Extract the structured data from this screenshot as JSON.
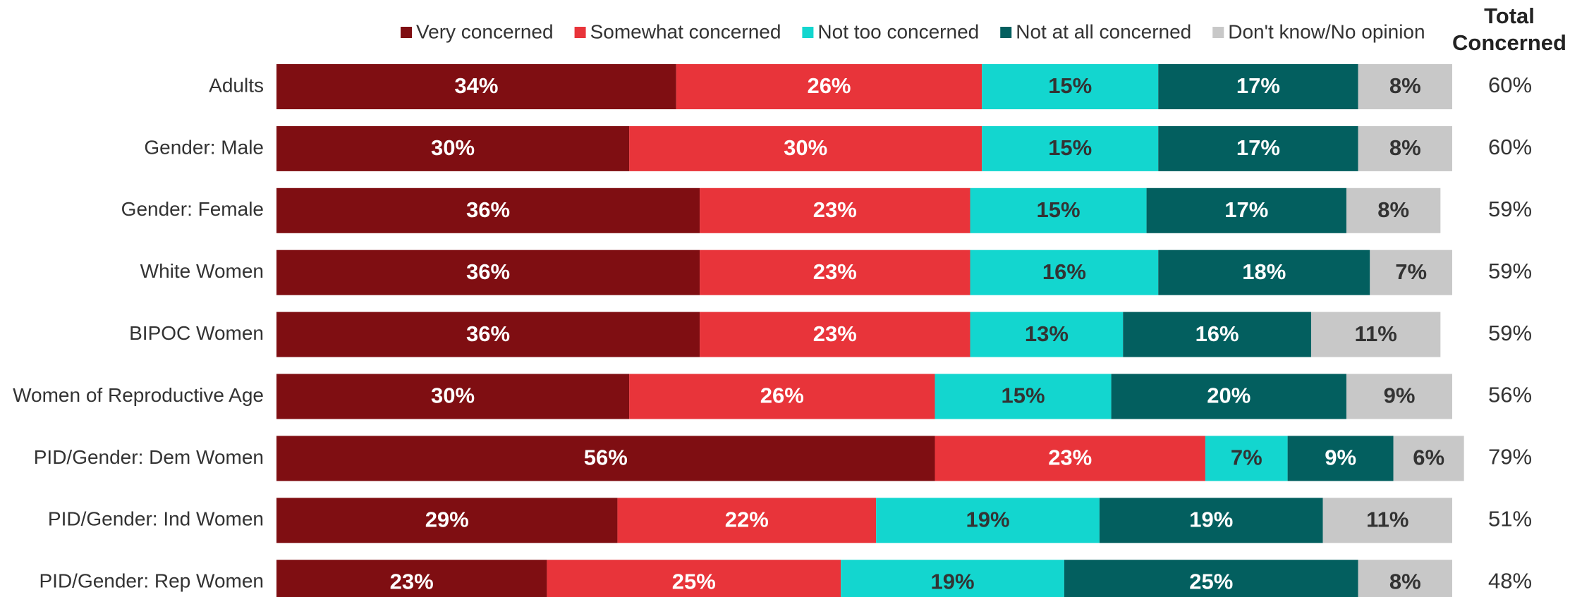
{
  "chart_data": {
    "type": "stacked-bar-horizontal",
    "categories": [
      "Adults",
      "Gender: Male",
      "Gender: Female",
      "White Women",
      "BIPOC Women",
      "Women of Reproductive Age",
      "PID/Gender: Dem Women",
      "PID/Gender: Ind Women",
      "PID/Gender: Rep Women"
    ],
    "xlim": [
      0,
      100
    ],
    "series": [
      {
        "name": "Very concerned",
        "color": "#7f0e12",
        "values": [
          34,
          30,
          36,
          36,
          36,
          30,
          56,
          29,
          23
        ],
        "value_labels": [
          "34%",
          "30%",
          "36%",
          "36%",
          "36%",
          "30%",
          "56%",
          "29%",
          "23%"
        ]
      },
      {
        "name": "Somewhat concerned",
        "color": "#e8343a",
        "values": [
          26,
          30,
          23,
          23,
          23,
          26,
          23,
          22,
          25
        ],
        "value_labels": [
          "26%",
          "30%",
          "23%",
          "23%",
          "23%",
          "26%",
          "23%",
          "22%",
          "25%"
        ]
      },
      {
        "name": "Not too concerned",
        "color": "#13d6cf",
        "values": [
          15,
          15,
          15,
          16,
          13,
          15,
          7,
          19,
          19
        ],
        "value_labels": [
          "15%",
          "15%",
          "15%",
          "16%",
          "13%",
          "15%",
          "7%",
          "19%",
          "19%"
        ]
      },
      {
        "name": "Not at all concerned",
        "color": "#035f5f",
        "values": [
          17,
          17,
          17,
          18,
          16,
          20,
          9,
          19,
          25
        ],
        "value_labels": [
          "17%",
          "17%",
          "17%",
          "18%",
          "16%",
          "20%",
          "9%",
          "19%",
          "25%"
        ]
      },
      {
        "name": "Don't know/No opinion",
        "color": "#c8c8c8",
        "values": [
          8,
          8,
          8,
          7,
          11,
          9,
          6,
          11,
          8
        ],
        "value_labels": [
          "8%",
          "8%",
          "8%",
          "7%",
          "11%",
          "9%",
          "6%",
          "11%",
          "8%"
        ]
      }
    ],
    "totals": {
      "title": "Total Concerned",
      "values": [
        60,
        60,
        59,
        59,
        59,
        56,
        79,
        51,
        48
      ],
      "value_labels": [
        "60%",
        "60%",
        "59%",
        "59%",
        "59%",
        "56%",
        "79%",
        "51%",
        "48%"
      ]
    }
  }
}
